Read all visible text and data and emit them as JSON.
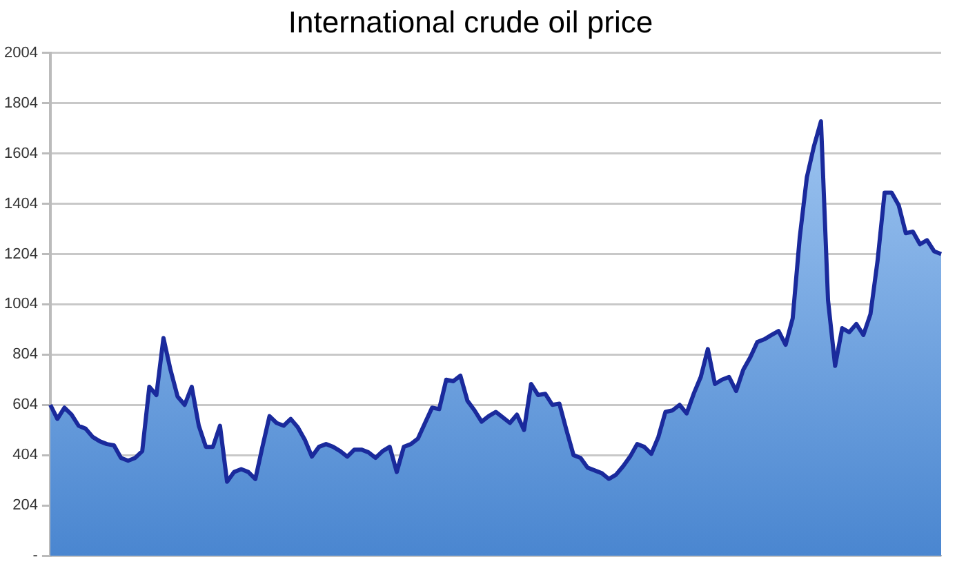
{
  "chart_data": {
    "type": "area",
    "title": "International crude oil price",
    "categories": [
      null,
      null,
      null,
      null,
      null,
      null,
      null,
      null,
      null,
      null,
      null,
      null,
      null,
      null,
      null,
      null,
      null,
      null,
      null,
      null,
      null,
      null,
      null,
      null,
      null,
      null,
      null,
      null,
      null,
      null,
      null,
      null,
      null,
      null,
      null,
      null,
      null,
      null,
      null,
      null,
      null,
      null,
      null,
      null,
      null,
      null,
      null,
      null,
      null,
      null,
      null,
      null,
      null,
      null,
      null,
      null,
      null,
      null,
      null,
      null,
      null,
      null,
      null,
      null,
      null,
      null,
      null,
      null,
      null,
      null,
      null,
      null,
      null,
      null,
      null,
      null,
      null,
      null,
      null,
      null,
      null,
      null,
      null,
      null,
      null,
      null,
      null,
      null,
      null,
      null,
      null,
      null,
      null,
      null,
      null,
      null,
      null,
      null,
      null,
      null,
      null,
      null,
      null,
      null,
      null,
      null,
      null,
      null,
      null,
      null,
      null,
      null,
      null,
      null,
      null,
      null,
      null,
      null,
      null,
      null,
      null,
      null,
      null,
      null,
      null,
      null,
      null
    ],
    "series": [
      {
        "color": "#1a2a9c",
        "values": [
          604,
          548,
          593,
          565,
          521,
          509,
          476,
          459,
          448,
          443,
          393,
          382,
          393,
          420,
          676,
          643,
          870,
          743,
          637,
          604,
          676,
          521,
          437,
          437,
          521,
          298,
          337,
          348,
          337,
          309,
          437,
          559,
          532,
          521,
          548,
          515,
          465,
          398,
          437,
          448,
          437,
          420,
          398,
          426,
          426,
          415,
          393,
          420,
          437,
          337,
          437,
          448,
          470,
          532,
          593,
          587,
          704,
          698,
          720,
          620,
          582,
          537,
          559,
          576,
          554,
          532,
          565,
          504,
          687,
          643,
          648,
          604,
          609,
          504,
          404,
          393,
          354,
          343,
          332,
          309,
          326,
          359,
          398,
          448,
          437,
          409,
          476,
          576,
          582,
          604,
          570,
          648,
          715,
          826,
          687,
          704,
          715,
          659,
          743,
          793,
          854,
          865,
          882,
          898,
          843,
          948,
          1271,
          1509,
          1632,
          1732,
          1020,
          759,
          909,
          893,
          926,
          882,
          965,
          1176,
          1448,
          1448,
          1398,
          1287,
          1293,
          1243,
          1259,
          1215,
          1204
        ]
      }
    ],
    "ylim": [
      4,
      2004
    ],
    "yticks": [
      {
        "value": 4,
        "label": "-"
      },
      204,
      404,
      604,
      804,
      1004,
      1204,
      1404,
      1604,
      1804,
      2004
    ],
    "grid": "y",
    "legend": false,
    "tick_labels": "y",
    "marker": "none"
  }
}
